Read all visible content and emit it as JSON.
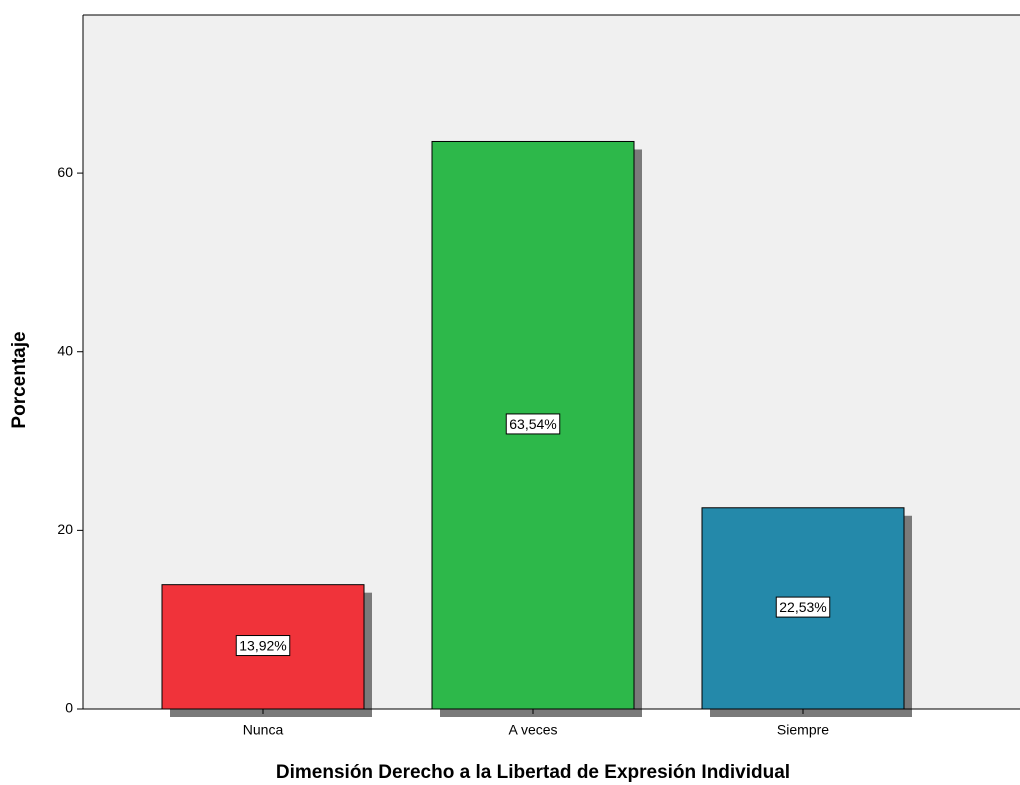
{
  "chart_data": {
    "type": "bar",
    "x_label": "Dimensión Derecho a la Libertad de Expresión Individual",
    "y_label": "Porcentaje",
    "categories": [
      "Nunca",
      "A veces",
      "Siempre"
    ],
    "values": [
      13.92,
      63.54,
      22.53
    ],
    "value_labels": [
      "13,92%",
      "63,54%",
      "22,53%"
    ],
    "colors": [
      "#f0333a",
      "#2db84a",
      "#2489aa"
    ],
    "ylim": [
      0,
      77.7
    ],
    "yticks": [
      0,
      20,
      40,
      60
    ],
    "grid": false
  }
}
